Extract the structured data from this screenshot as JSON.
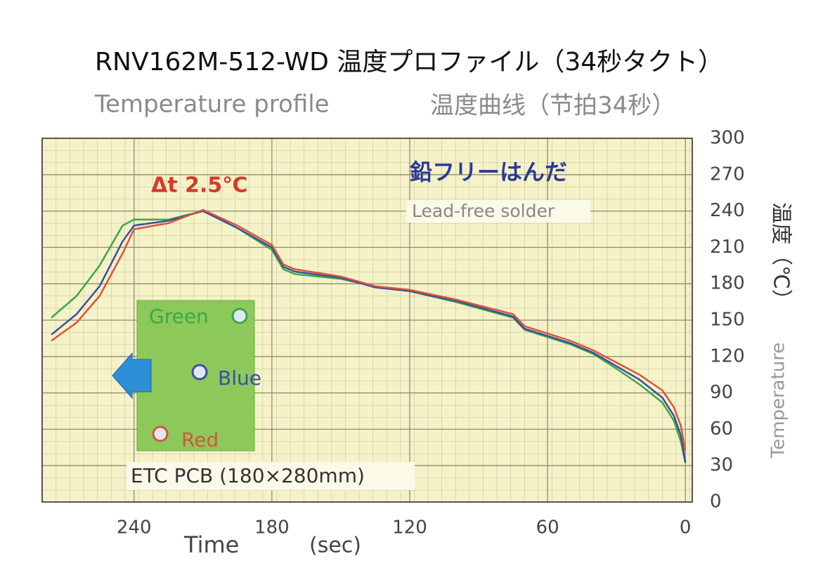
{
  "chart_data": {
    "type": "line",
    "title": "RNV162M-512-WD 温度プロファイル（34秒タクト）",
    "subtitle": "Temperature profile",
    "subtitle_cn": "温度曲线（节拍34秒）",
    "x_label": "Time",
    "x_unit": "(sec)",
    "y_label": "温度（℃）",
    "y_label_en": "Temperature",
    "annotations": [
      "Δt 2.5℃",
      "鉛フリーはんだ",
      "Lead-free solder",
      "ETC PCB (180×280mm)"
    ],
    "x": [
      276,
      265,
      255,
      245,
      240,
      225,
      210,
      195,
      180,
      175,
      170,
      150,
      135,
      120,
      100,
      75,
      70,
      50,
      40,
      30,
      20,
      10,
      5,
      2,
      0
    ],
    "series": [
      {
        "name": "Green",
        "color": "#3aa845",
        "values": [
          152,
          170,
          195,
          228,
          233,
          233,
          240,
          226,
          208,
          192,
          188,
          184,
          178,
          174,
          165,
          152,
          142,
          130,
          122,
          110,
          97,
          82,
          67,
          50,
          32
        ]
      },
      {
        "name": "Blue",
        "color": "#3a4fa0",
        "values": [
          138,
          155,
          178,
          215,
          228,
          232,
          240,
          226,
          210,
          194,
          190,
          185,
          177,
          174,
          166,
          153,
          143,
          131,
          123,
          112,
          101,
          86,
          71,
          55,
          33
        ]
      },
      {
        "name": "Red",
        "color": "#d9553a",
        "values": [
          133,
          148,
          170,
          205,
          225,
          230,
          241,
          228,
          212,
          196,
          192,
          186,
          178,
          175,
          167,
          155,
          145,
          133,
          125,
          115,
          105,
          92,
          78,
          63,
          42
        ]
      }
    ],
    "xlim": [
      280,
      -3
    ],
    "xticks": [
      240,
      180,
      120,
      60,
      0
    ],
    "ylim": [
      0,
      300
    ],
    "yticks": [
      0,
      30,
      60,
      90,
      120,
      150,
      180,
      210,
      240,
      270,
      300
    ],
    "grid": true
  }
}
